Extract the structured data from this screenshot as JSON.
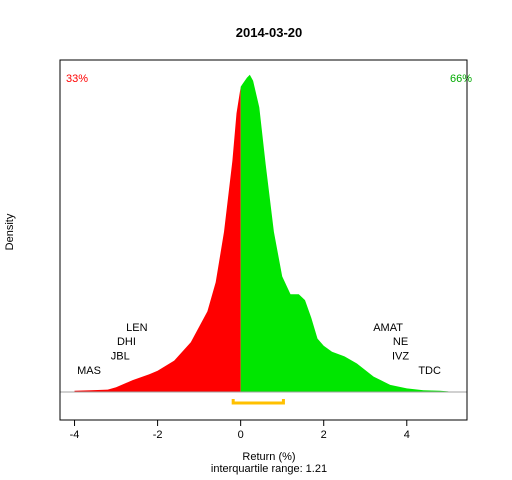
{
  "chart_data": {
    "type": "area",
    "title": "2014-03-20",
    "xlabel": "Return (%)",
    "ylabel": "Density",
    "subtitle": "interquartile range: 1.21",
    "xlim": [
      -4.35,
      5.45
    ],
    "ylim": [
      0,
      0.56
    ],
    "x_ticks": [
      -4,
      -2,
      0,
      2,
      4
    ],
    "x_tick_labels": [
      "-4",
      "-2",
      "0",
      "2",
      "4"
    ],
    "split_at": 0,
    "left_share_label": "33%",
    "right_share_label": "66%",
    "left_color": "#ff0000",
    "right_color": "#00e600",
    "iqr_color": "#ffc000",
    "iqr": [
      -0.18,
      1.03
    ],
    "density": {
      "x": [
        -4.0,
        -3.6,
        -3.2,
        -3.0,
        -2.6,
        -2.2,
        -2.0,
        -1.6,
        -1.2,
        -0.8,
        -0.6,
        -0.4,
        -0.2,
        -0.1,
        0.0,
        0.05,
        0.15,
        0.22,
        0.3,
        0.45,
        0.6,
        0.8,
        1.0,
        1.2,
        1.4,
        1.55,
        1.7,
        1.85,
        2.0,
        2.2,
        2.5,
        2.8,
        3.2,
        3.6,
        4.0,
        4.4,
        4.8,
        5.0
      ],
      "y": [
        0.002,
        0.003,
        0.004,
        0.008,
        0.02,
        0.03,
        0.036,
        0.053,
        0.084,
        0.136,
        0.185,
        0.27,
        0.39,
        0.47,
        0.515,
        0.52,
        0.53,
        0.535,
        0.525,
        0.48,
        0.385,
        0.27,
        0.195,
        0.165,
        0.165,
        0.155,
        0.125,
        0.09,
        0.078,
        0.068,
        0.06,
        0.048,
        0.026,
        0.012,
        0.006,
        0.003,
        0.002,
        0.001
      ]
    },
    "annotations": [
      {
        "label": "LEN",
        "x": -2.5,
        "y": 0.103
      },
      {
        "label": "DHI",
        "x": -2.75,
        "y": 0.079
      },
      {
        "label": "JBL",
        "x": -2.9,
        "y": 0.055
      },
      {
        "label": "MAS",
        "x": -3.65,
        "y": 0.03
      },
      {
        "label": "AMAT",
        "x": 3.55,
        "y": 0.103
      },
      {
        "label": "NE",
        "x": 3.85,
        "y": 0.079
      },
      {
        "label": "IVZ",
        "x": 3.85,
        "y": 0.055
      },
      {
        "label": "TDC",
        "x": 4.55,
        "y": 0.03
      }
    ],
    "grid": false,
    "legend": "none"
  }
}
